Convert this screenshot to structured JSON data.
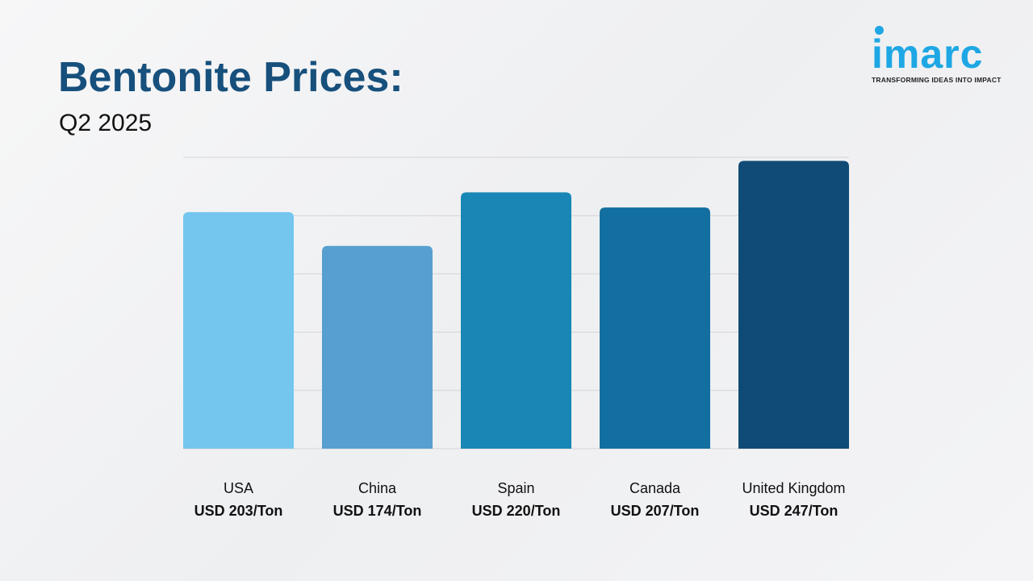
{
  "header": {
    "title": "Bentonite Prices:",
    "subtitle": "Q2 2025"
  },
  "logo": {
    "word": "imarc",
    "tagline": "TRANSFORMING IDEAS INTO IMPACT"
  },
  "chart_data": {
    "type": "bar",
    "title": "Bentonite Prices: Q2 2025",
    "categories": [
      "USA",
      "China",
      "Spain",
      "Canada",
      "United Kingdom"
    ],
    "values": [
      203,
      174,
      220,
      207,
      247
    ],
    "value_labels": [
      "USD 203/Ton",
      "USD 174/Ton",
      "USD 220/Ton",
      "USD 207/Ton",
      "USD 247/Ton"
    ],
    "unit": "USD/Ton",
    "colors": [
      "#74c6ee",
      "#569fd0",
      "#1887b5",
      "#136fa0",
      "#0f4b76"
    ],
    "ylim": [
      0,
      250
    ],
    "grid": true,
    "xlabel": "",
    "ylabel": ""
  }
}
